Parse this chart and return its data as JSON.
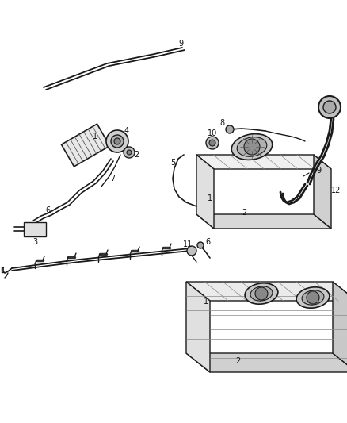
{
  "bg_color": "#ffffff",
  "line_color": "#1a1a1a",
  "fig_width": 4.38,
  "fig_height": 5.33,
  "dpi": 100,
  "label_fs": 7.0
}
